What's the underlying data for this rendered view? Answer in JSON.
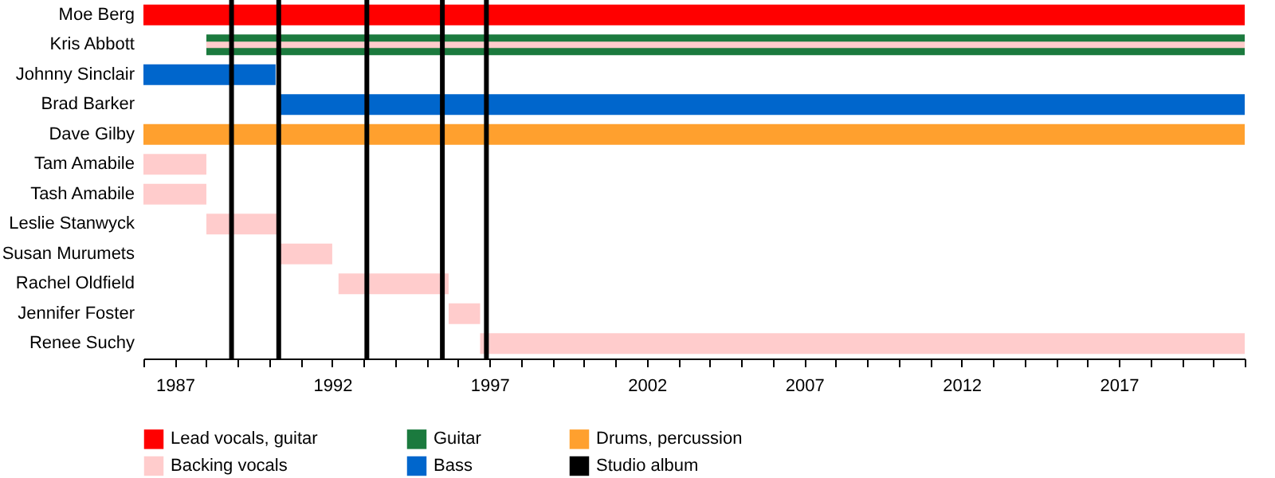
{
  "chart_data": {
    "type": "bar",
    "orientation": "horizontal",
    "legend": "bottom",
    "grid": false,
    "categories": [
      "Moe Berg",
      "Kris Abbott",
      "Johnny Sinclair",
      "Brad Barker",
      "Dave Gilby",
      "Tam Amabile",
      "Tash Amabile",
      "Leslie Stanwyck",
      "Susan Murumets",
      "Rachel Oldfield",
      "Jennifer Foster",
      "Renee Suchy"
    ],
    "series": [
      {
        "name": "Lead vocals, guitar",
        "color": "#ff0000",
        "values": [
          35,
          null,
          null,
          null,
          null,
          null,
          null,
          null,
          null,
          null,
          null,
          null
        ],
        "base": [
          1986,
          null,
          null,
          null,
          null,
          null,
          null,
          null,
          null,
          null,
          null,
          null
        ]
      },
      {
        "name": "Guitar",
        "color": "#1b7a3e",
        "values": [
          null,
          33,
          null,
          null,
          null,
          null,
          null,
          null,
          null,
          null,
          null,
          null
        ],
        "base": [
          null,
          1988,
          null,
          null,
          null,
          null,
          null,
          null,
          null,
          null,
          null,
          null
        ]
      },
      {
        "name": "Drums, percussion",
        "color": "#ffa02e",
        "values": [
          null,
          null,
          null,
          null,
          35,
          null,
          null,
          null,
          null,
          null,
          null,
          null
        ],
        "base": [
          null,
          null,
          null,
          null,
          1986,
          null,
          null,
          null,
          null,
          null,
          null,
          null
        ]
      },
      {
        "name": "Backing vocals",
        "color": "#ffcccc",
        "values": [
          null,
          33,
          null,
          null,
          null,
          2,
          2,
          2.3,
          1.7,
          3.5,
          1.0,
          24.3
        ],
        "base": [
          null,
          1988,
          null,
          null,
          null,
          1986,
          1986,
          1988,
          1990.3,
          1992.2,
          1995.7,
          1996.7
        ]
      },
      {
        "name": "Bass",
        "color": "#0066cc",
        "values": [
          null,
          null,
          4.2,
          30.7,
          null,
          null,
          null,
          null,
          null,
          null,
          null,
          null
        ],
        "base": [
          null,
          null,
          1986,
          1990.3,
          null,
          null,
          null,
          null,
          null,
          null,
          null,
          null
        ]
      }
    ],
    "ref_lines": [
      {
        "axis": "x",
        "value": 1988.8,
        "label": "Studio album",
        "color": "#000000"
      },
      {
        "axis": "x",
        "value": 1990.3,
        "color": "#000000"
      },
      {
        "axis": "x",
        "value": 1993.1,
        "color": "#000000"
      },
      {
        "axis": "x",
        "value": 1995.5,
        "color": "#000000"
      },
      {
        "axis": "x",
        "value": 1996.9,
        "color": "#000000"
      }
    ],
    "xlim": [
      1986,
      2021
    ],
    "xticks": [
      {
        "value": 1986,
        "label": null
      },
      1987,
      {
        "value": 1988,
        "label": null
      },
      {
        "value": 1989,
        "label": null
      },
      {
        "value": 1990,
        "label": null
      },
      {
        "value": 1991,
        "label": null
      },
      1992,
      {
        "value": 1993,
        "label": null
      },
      {
        "value": 1994,
        "label": null
      },
      {
        "value": 1995,
        "label": null
      },
      {
        "value": 1996,
        "label": null
      },
      1997,
      {
        "value": 1998,
        "label": null
      },
      {
        "value": 1999,
        "label": null
      },
      {
        "value": 2000,
        "label": null
      },
      {
        "value": 2001,
        "label": null
      },
      2002,
      {
        "value": 2003,
        "label": null
      },
      {
        "value": 2004,
        "label": null
      },
      {
        "value": 2005,
        "label": null
      },
      {
        "value": 2006,
        "label": null
      },
      2007,
      {
        "value": 2008,
        "label": null
      },
      {
        "value": 2009,
        "label": null
      },
      {
        "value": 2010,
        "label": null
      },
      {
        "value": 2011,
        "label": null
      },
      2012,
      {
        "value": 2013,
        "label": null
      },
      {
        "value": 2014,
        "label": null
      },
      {
        "value": 2015,
        "label": null
      },
      {
        "value": 2016,
        "label": null
      },
      2017,
      {
        "value": 2018,
        "label": null
      },
      {
        "value": 2019,
        "label": null
      },
      {
        "value": 2020,
        "label": null
      },
      {
        "value": 2021,
        "label": null
      }
    ]
  }
}
